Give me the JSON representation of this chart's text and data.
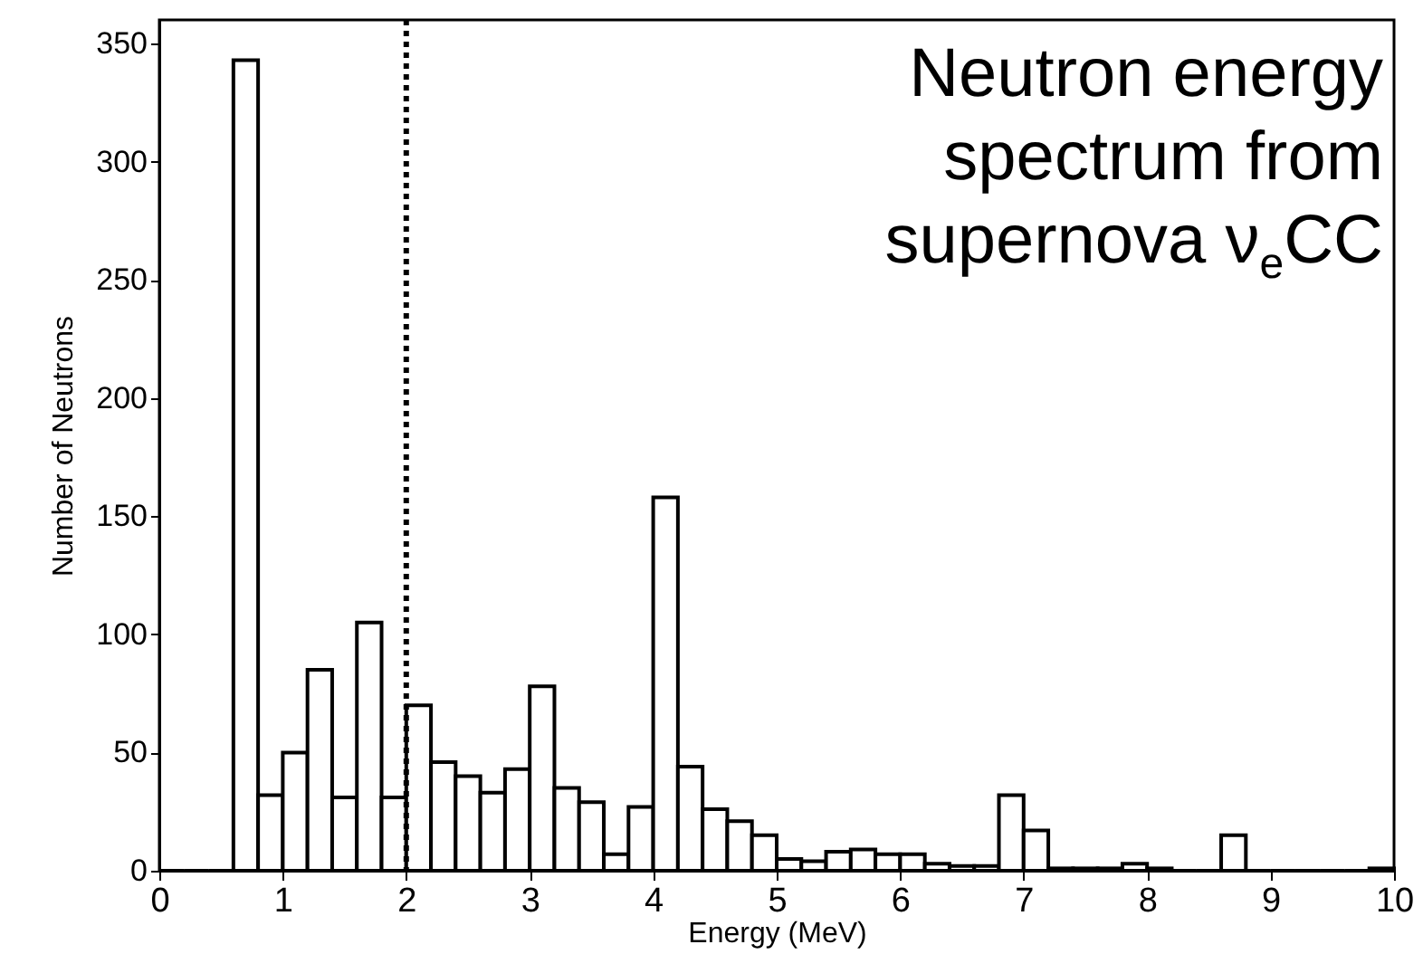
{
  "chart_data": {
    "type": "histogram",
    "xlabel": "Energy (MeV)",
    "ylabel": "Number of Neutrons",
    "annotations": [
      "Neutron energy spectrum from supernova ν$_{e}$CC"
    ],
    "bins": [
      0,
      0.2,
      0.4,
      0.6,
      0.8,
      1,
      1.2,
      1.4,
      1.6,
      1.8,
      2,
      2.2,
      2.4,
      2.6,
      2.8,
      3,
      3.2,
      3.4,
      3.6,
      3.8,
      4,
      4.2,
      4.4,
      4.6,
      4.8,
      5,
      5.2,
      5.4,
      5.6,
      5.8,
      6,
      6.2,
      6.4,
      6.6,
      6.8,
      7,
      7.2,
      7.4,
      7.6,
      7.8,
      8,
      8.2,
      8.4,
      8.6,
      8.8,
      9,
      9.2,
      9.4,
      9.6,
      9.8,
      10
    ],
    "values": [
      0,
      0,
      0,
      343,
      32,
      50,
      85,
      31,
      105,
      31,
      70,
      46,
      40,
      33,
      43,
      78,
      35,
      29,
      7,
      27,
      158,
      44,
      26,
      21,
      15,
      5,
      4,
      8,
      9,
      7,
      7,
      3,
      2,
      2,
      32,
      17,
      1,
      1,
      1,
      3,
      1,
      0,
      0,
      15,
      0,
      0,
      0,
      0,
      0,
      1
    ],
    "color": "#000000",
    "xlim": [
      0,
      10
    ],
    "xticks": [
      0,
      1,
      2,
      3,
      4,
      5,
      6,
      7,
      8,
      9,
      10
    ],
    "ylim": [
      0,
      360
    ],
    "yticks": [
      0,
      50,
      100,
      150,
      200,
      250,
      300,
      350
    ],
    "grid": false,
    "ref_lines": [
      {
        "axis": "x",
        "value": 2,
        "line_style": "dotted",
        "color": "#000000"
      }
    ]
  }
}
